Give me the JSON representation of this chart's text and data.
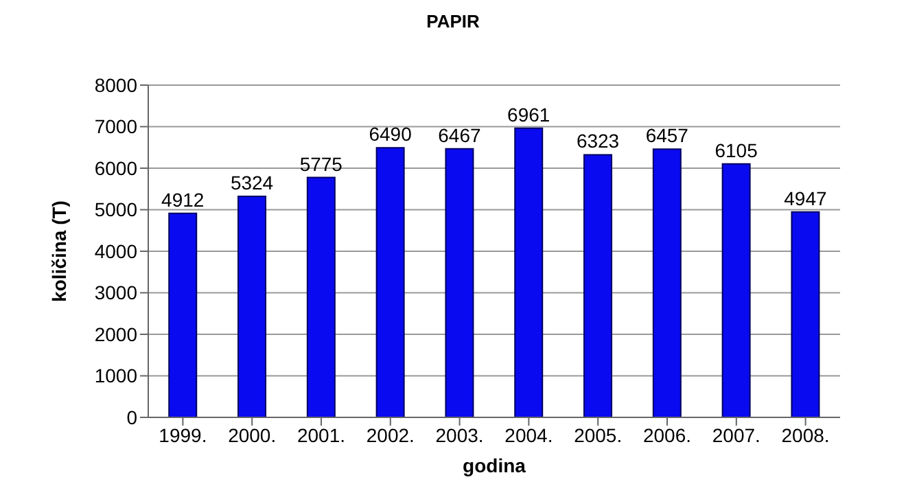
{
  "chart_data": {
    "type": "bar",
    "title": "PAPIR",
    "xlabel": "godina",
    "ylabel": "količina (T)",
    "categories": [
      "1999.",
      "2000.",
      "2001.",
      "2002.",
      "2003.",
      "2004.",
      "2005.",
      "2006.",
      "2007.",
      "2008."
    ],
    "values": [
      4912,
      5324,
      5775,
      6490,
      6467,
      6961,
      6323,
      6457,
      6105,
      4947
    ],
    "color": "#0a0af0",
    "ylim": [
      0,
      8000
    ],
    "yticks": [
      0,
      1000,
      2000,
      3000,
      4000,
      5000,
      6000,
      7000,
      8000
    ],
    "grid": "y",
    "data_labels": true
  }
}
